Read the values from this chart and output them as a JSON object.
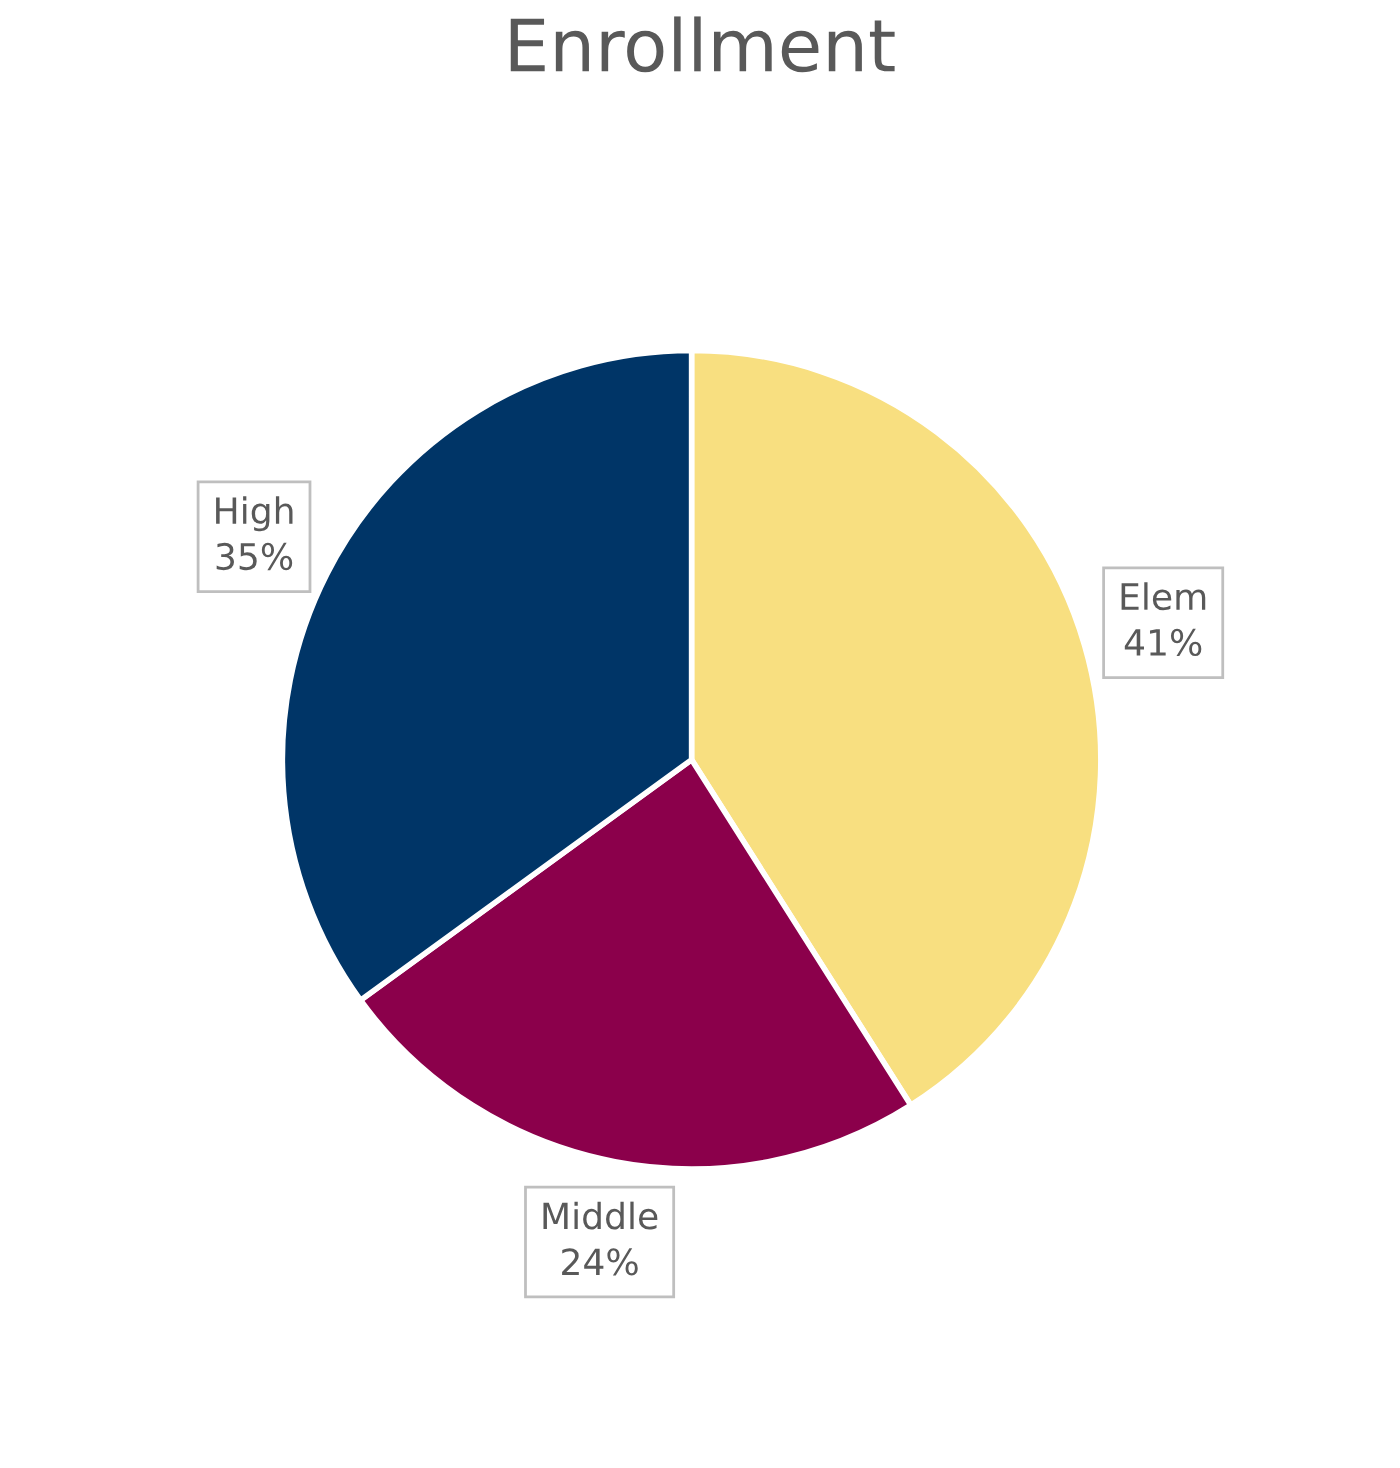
{
  "chart_data": {
    "type": "pie",
    "title": "Enrollment",
    "categories": [
      "Elem",
      "Middle",
      "High"
    ],
    "values": [
      41,
      24,
      35
    ],
    "value_labels": [
      "41%",
      "24%",
      "35%"
    ],
    "colors": [
      "#f8df80",
      "#8b004b",
      "#003567"
    ],
    "legend": false
  }
}
